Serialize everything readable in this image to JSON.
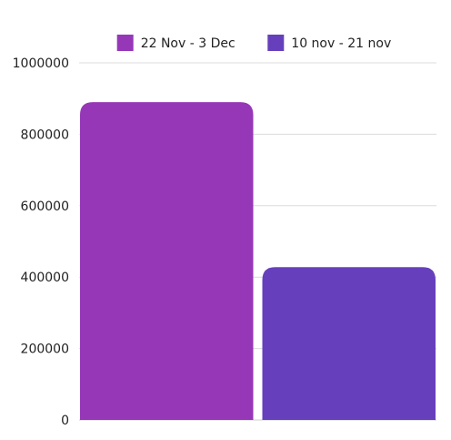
{
  "chart_data": {
    "type": "bar",
    "title": "",
    "xlabel": "",
    "ylabel": "",
    "categories": [
      ""
    ],
    "series": [
      {
        "name": "22 Nov - 3 Dec",
        "color": "#9637b8",
        "values": [
          890000
        ]
      },
      {
        "name": "10 nov - 21 nov",
        "color": "#6640bc",
        "values": [
          428000
        ]
      }
    ],
    "ylim": [
      0,
      1000000
    ],
    "yticks": [
      "0",
      "200000",
      "400000",
      "600000",
      "800000",
      "1000000"
    ],
    "grid": true,
    "legend_position": "top-center"
  }
}
